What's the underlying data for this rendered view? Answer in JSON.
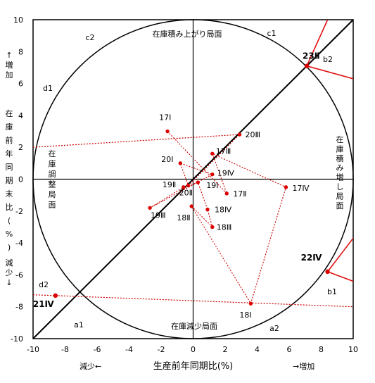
{
  "chart_data": {
    "type": "scatter",
    "xlabel": "生産前年同期比(%)",
    "ylabel": "在庫前年同期末比(%)",
    "x_left_note": "減少←",
    "x_right_note": "→増加",
    "y_top_note": "↑増加",
    "y_bottom_note": "減少↓",
    "xlim": [
      -10,
      10
    ],
    "ylim": [
      -10,
      10
    ],
    "x_ticks": [
      "-10",
      "-8",
      "-6",
      "-4",
      "-2",
      "0",
      "2",
      "4",
      "6",
      "8",
      "10"
    ],
    "y_ticks": [
      "10",
      "8",
      "6",
      "4",
      "2",
      "0",
      "-2",
      "-4",
      "-6",
      "-8",
      "-10"
    ],
    "region_labels": {
      "top": "在庫積み上がり局面",
      "right": "在庫積み増し局面",
      "bottom": "在庫減少局面",
      "left": "在庫調整局面"
    },
    "sector_labels": [
      "c1",
      "c2",
      "d1",
      "d2",
      "a1",
      "a2",
      "b1",
      "b2"
    ],
    "series": [
      {
        "name": "",
        "points": [
          {
            "label": "21Ⅳ",
            "x": -8.6,
            "y": -7.3
          },
          {
            "label": "22Ⅳ",
            "x": 8.4,
            "y": -5.8
          },
          {
            "label": "23Ⅱ",
            "x": 7.1,
            "y": 7.1
          }
        ]
      },
      {
        "name": "",
        "points": [
          {
            "label": "17Ⅰ",
            "x": -1.6,
            "y": 3.0
          },
          {
            "label": "17Ⅱ",
            "x": 2.1,
            "y": -0.9
          },
          {
            "label": "17Ⅲ",
            "x": 1.2,
            "y": 1.6
          },
          {
            "label": "17Ⅳ",
            "x": 5.8,
            "y": -0.5
          },
          {
            "label": "18Ⅰ",
            "x": 3.6,
            "y": -7.8
          },
          {
            "label": "18Ⅱ",
            "x": -0.1,
            "y": -1.7
          },
          {
            "label": "18Ⅲ",
            "x": 1.2,
            "y": -3.0
          },
          {
            "label": "18Ⅳ",
            "x": 0.9,
            "y": -1.9
          },
          {
            "label": "19Ⅰ",
            "x": 0.3,
            "y": -0.2
          },
          {
            "label": "19Ⅱ",
            "x": -0.6,
            "y": -0.5
          },
          {
            "label": "19Ⅲ",
            "x": -2.7,
            "y": -1.8
          },
          {
            "label": "19Ⅳ",
            "x": 1.2,
            "y": 0.3
          },
          {
            "label": "20Ⅰ",
            "x": -0.8,
            "y": 1.0
          },
          {
            "label": "20Ⅱ",
            "x": -0.3,
            "y": -0.4
          },
          {
            "label": "20Ⅲ",
            "x": 2.9,
            "y": 2.8
          }
        ]
      }
    ],
    "colors": {
      "points": "#dd0000",
      "dotted": "#cc0000",
      "bold_red": "#e01010",
      "axes": "#000000"
    }
  }
}
